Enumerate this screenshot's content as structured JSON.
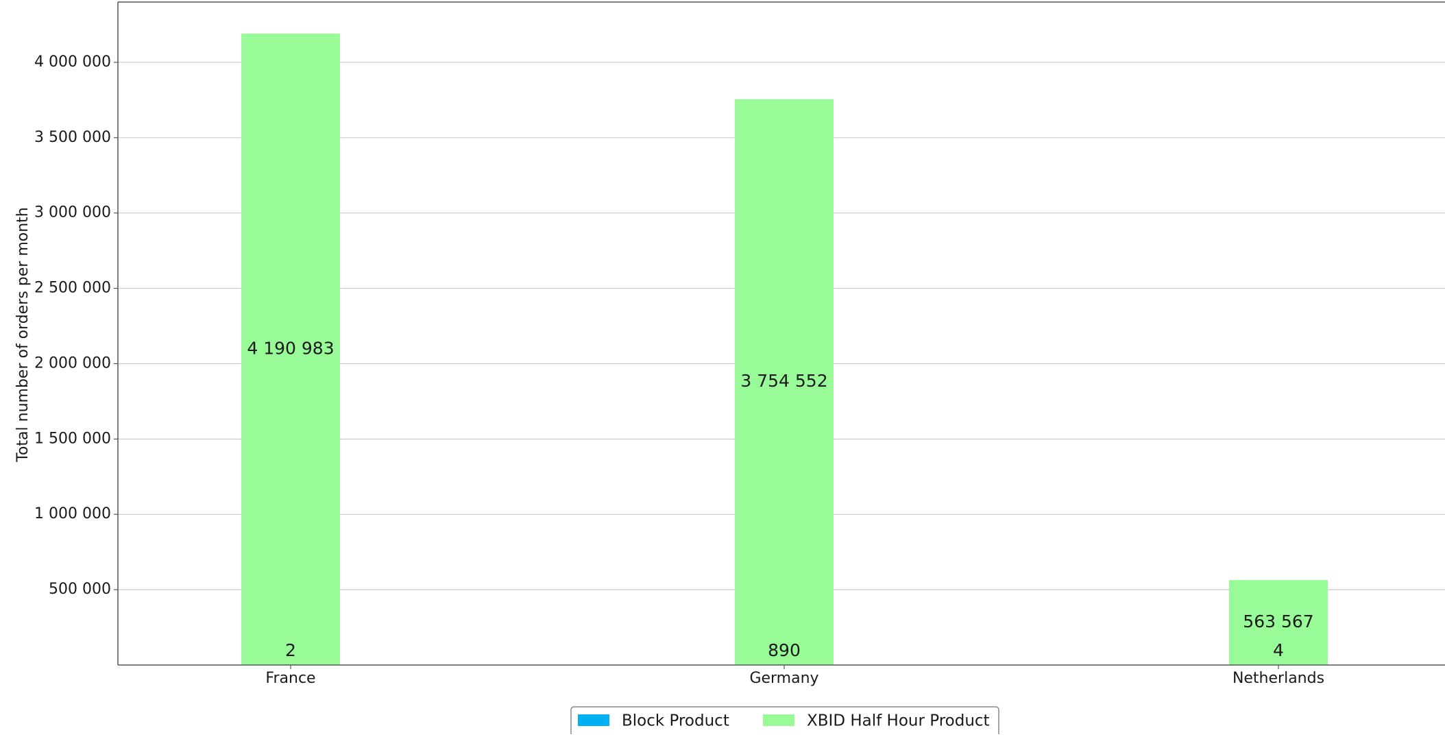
{
  "chart_data": {
    "type": "bar",
    "stacked": true,
    "categories": [
      "France",
      "Germany",
      "Netherlands"
    ],
    "series": [
      {
        "name": "Block Product",
        "color": "#00b0f0",
        "values": [
          2,
          890,
          4
        ],
        "labels": [
          "2",
          "890",
          "4"
        ]
      },
      {
        "name": "XBID Half Hour Product",
        "color": "#98fb98",
        "values": [
          4190983,
          3754552,
          563567
        ],
        "labels": [
          "4 190 983",
          "3 754 552",
          "563 567"
        ]
      }
    ],
    "ylabel": "Total number of orders per month",
    "xlabel": "",
    "ylim": [
      0,
      4400000
    ],
    "yticks": [
      500000,
      1000000,
      1500000,
      2000000,
      2500000,
      3000000,
      3500000,
      4000000
    ],
    "ytick_labels": [
      "500 000",
      "1 000 000",
      "1 500 000",
      "2 000 000",
      "2 500 000",
      "3 000 000",
      "3 500 000",
      "4 000 000"
    ],
    "grid": "horizontal",
    "legend_position": "bottom-center"
  },
  "colors": {
    "grid": "#cccccc",
    "axis": "#555555",
    "legend_border": "#888888"
  }
}
